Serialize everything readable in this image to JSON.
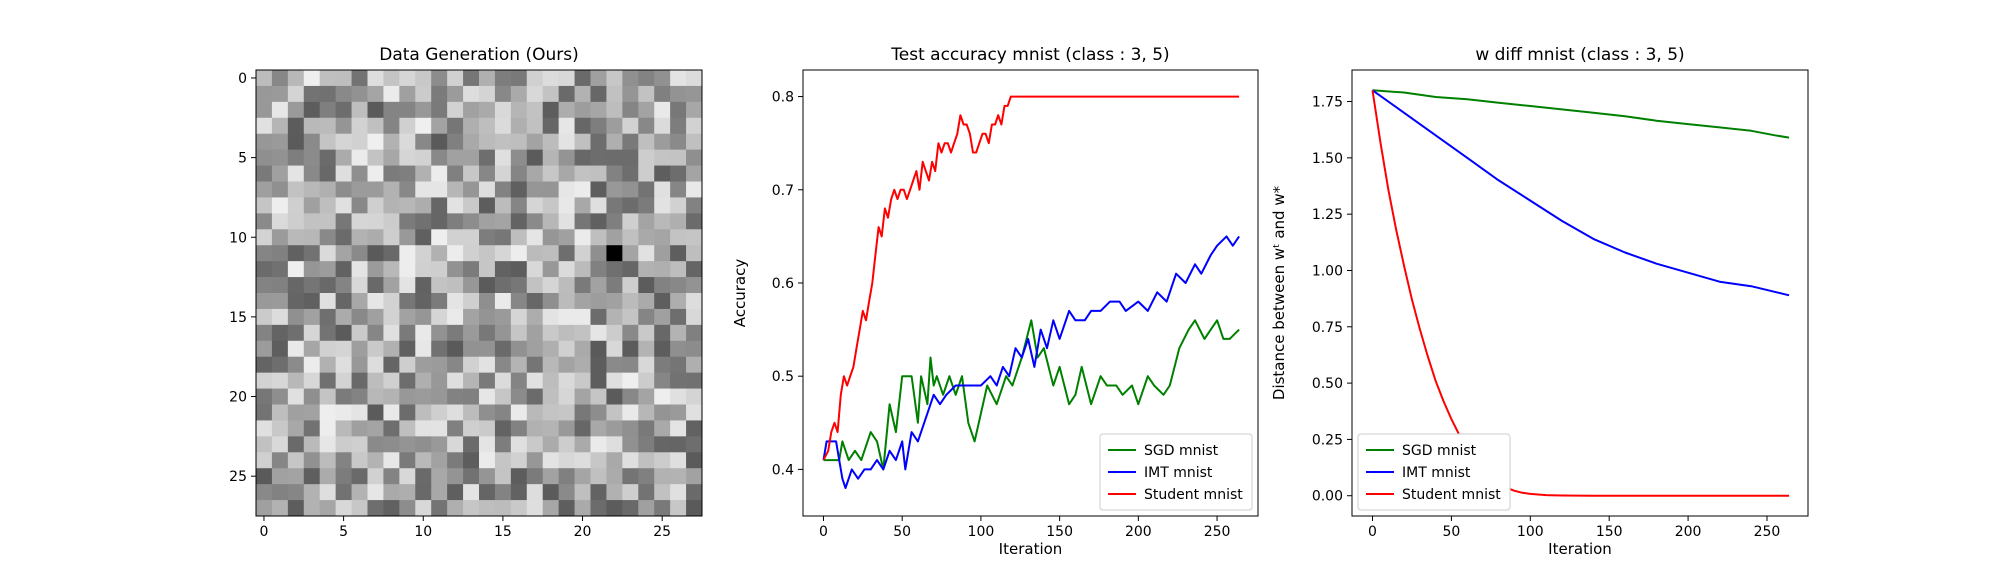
{
  "chart_data": [
    {
      "type": "heatmap",
      "title": "Data Generation (Ours)",
      "colormap": "gray",
      "rows": 28,
      "cols": 28,
      "xticks": [
        0,
        5,
        10,
        15,
        20,
        25
      ],
      "yticks": [
        0,
        5,
        10,
        15,
        20,
        25
      ],
      "darkest_cell": [
        11,
        22
      ]
    },
    {
      "type": "line",
      "title": "Test accuracy mnist (class : 3, 5)",
      "xlabel": "Iteration",
      "ylabel": "Accuracy",
      "xlim": [
        -13,
        276
      ],
      "ylim": [
        0.35,
        0.8285
      ],
      "xticks": [
        0,
        50,
        100,
        150,
        200,
        250
      ],
      "yticks": [
        0.4,
        0.5,
        0.6,
        0.7,
        0.8
      ],
      "ytick_labels": [
        "0.4",
        "0.5",
        "0.6",
        "0.7",
        "0.8"
      ],
      "legend": "lower-right",
      "grid": false,
      "series": [
        {
          "name": "SGD mnist",
          "color": "#008000",
          "x": [
            0,
            10,
            12,
            16,
            20,
            24,
            30,
            34,
            38,
            42,
            46,
            50,
            56,
            60,
            62,
            66,
            68,
            70,
            72,
            76,
            80,
            84,
            88,
            92,
            96,
            100,
            104,
            110,
            116,
            120,
            126,
            132,
            136,
            140,
            146,
            150,
            156,
            160,
            164,
            170,
            176,
            180,
            186,
            190,
            196,
            200,
            206,
            210,
            216,
            220,
            226,
            232,
            236,
            242,
            246,
            250,
            254,
            258,
            264
          ],
          "y": [
            0.41,
            0.41,
            0.43,
            0.41,
            0.42,
            0.41,
            0.44,
            0.43,
            0.4,
            0.47,
            0.44,
            0.5,
            0.5,
            0.45,
            0.5,
            0.47,
            0.52,
            0.49,
            0.5,
            0.48,
            0.5,
            0.48,
            0.5,
            0.45,
            0.43,
            0.46,
            0.49,
            0.47,
            0.5,
            0.49,
            0.52,
            0.56,
            0.52,
            0.53,
            0.49,
            0.51,
            0.47,
            0.48,
            0.51,
            0.47,
            0.5,
            0.49,
            0.49,
            0.48,
            0.49,
            0.47,
            0.5,
            0.49,
            0.48,
            0.49,
            0.53,
            0.55,
            0.56,
            0.54,
            0.55,
            0.56,
            0.54,
            0.54,
            0.55
          ]
        },
        {
          "name": "IMT mnist",
          "color": "#0000ff",
          "x": [
            0,
            2,
            8,
            10,
            12,
            14,
            18,
            22,
            26,
            30,
            34,
            38,
            42,
            46,
            50,
            52,
            56,
            60,
            64,
            70,
            74,
            78,
            84,
            90,
            96,
            100,
            106,
            110,
            114,
            118,
            122,
            126,
            130,
            134,
            138,
            142,
            146,
            150,
            156,
            160,
            166,
            170,
            176,
            182,
            188,
            192,
            200,
            206,
            212,
            218,
            224,
            230,
            236,
            240,
            246,
            250,
            256,
            260,
            264
          ],
          "y": [
            0.41,
            0.43,
            0.43,
            0.41,
            0.39,
            0.38,
            0.4,
            0.39,
            0.4,
            0.4,
            0.41,
            0.4,
            0.42,
            0.41,
            0.43,
            0.4,
            0.44,
            0.43,
            0.45,
            0.48,
            0.47,
            0.48,
            0.49,
            0.49,
            0.49,
            0.49,
            0.5,
            0.49,
            0.51,
            0.5,
            0.53,
            0.52,
            0.54,
            0.51,
            0.55,
            0.53,
            0.56,
            0.54,
            0.57,
            0.56,
            0.56,
            0.57,
            0.57,
            0.58,
            0.58,
            0.57,
            0.58,
            0.57,
            0.59,
            0.58,
            0.61,
            0.6,
            0.62,
            0.61,
            0.63,
            0.64,
            0.65,
            0.64,
            0.65
          ]
        },
        {
          "name": "Student mnist",
          "color": "#ff0000",
          "x": [
            0,
            3,
            5,
            7,
            9,
            11,
            13,
            15,
            17,
            19,
            21,
            23,
            25,
            27,
            29,
            31,
            33,
            35,
            37,
            39,
            41,
            43,
            45,
            47,
            49,
            51,
            53,
            55,
            57,
            59,
            61,
            63,
            65,
            67,
            69,
            71,
            73,
            75,
            77,
            79,
            81,
            83,
            85,
            87,
            89,
            91,
            93,
            95,
            97,
            99,
            101,
            103,
            105,
            107,
            109,
            111,
            113,
            115,
            117,
            119,
            121,
            123,
            125,
            130,
            150,
            200,
            250,
            264
          ],
          "y": [
            0.41,
            0.42,
            0.44,
            0.45,
            0.44,
            0.48,
            0.5,
            0.49,
            0.5,
            0.51,
            0.53,
            0.55,
            0.57,
            0.56,
            0.58,
            0.6,
            0.63,
            0.66,
            0.65,
            0.68,
            0.67,
            0.69,
            0.7,
            0.69,
            0.7,
            0.7,
            0.69,
            0.7,
            0.71,
            0.72,
            0.7,
            0.73,
            0.72,
            0.71,
            0.73,
            0.72,
            0.75,
            0.74,
            0.75,
            0.75,
            0.74,
            0.75,
            0.76,
            0.78,
            0.77,
            0.77,
            0.76,
            0.74,
            0.74,
            0.75,
            0.76,
            0.76,
            0.75,
            0.77,
            0.77,
            0.78,
            0.77,
            0.79,
            0.79,
            0.8,
            0.8,
            0.8,
            0.8,
            0.8,
            0.8,
            0.8,
            0.8,
            0.8
          ]
        }
      ]
    },
    {
      "type": "line",
      "title": "w diff mnist (class : 3, 5)",
      "xlabel": "Iteration",
      "ylabel": "Distance between wᵗ and w*",
      "xlim": [
        -13,
        276
      ],
      "ylim": [
        -0.09,
        1.89
      ],
      "xticks": [
        0,
        50,
        100,
        150,
        200,
        250
      ],
      "yticks": [
        0.0,
        0.25,
        0.5,
        0.75,
        1.0,
        1.25,
        1.5,
        1.75
      ],
      "ytick_labels": [
        "0.00",
        "0.25",
        "0.50",
        "0.75",
        "1.00",
        "1.25",
        "1.50",
        "1.75"
      ],
      "legend": "lower-left",
      "grid": false,
      "series": [
        {
          "name": "SGD mnist",
          "color": "#008000",
          "x": [
            0,
            20,
            40,
            60,
            80,
            100,
            120,
            140,
            160,
            180,
            200,
            220,
            240,
            255,
            264
          ],
          "y": [
            1.8,
            1.79,
            1.77,
            1.76,
            1.745,
            1.73,
            1.715,
            1.7,
            1.685,
            1.665,
            1.65,
            1.635,
            1.62,
            1.6,
            1.59
          ]
        },
        {
          "name": "IMT mnist",
          "color": "#0000ff",
          "x": [
            0,
            20,
            40,
            60,
            80,
            100,
            120,
            140,
            160,
            180,
            200,
            220,
            240,
            264
          ],
          "y": [
            1.8,
            1.7,
            1.6,
            1.5,
            1.4,
            1.31,
            1.22,
            1.14,
            1.08,
            1.03,
            0.99,
            0.95,
            0.93,
            0.89
          ]
        },
        {
          "name": "Student mnist",
          "color": "#ff0000",
          "x": [
            0,
            5,
            10,
            15,
            20,
            25,
            30,
            35,
            40,
            45,
            50,
            55,
            60,
            65,
            70,
            75,
            80,
            85,
            90,
            95,
            100,
            110,
            120,
            140,
            180,
            264
          ],
          "y": [
            1.8,
            1.57,
            1.36,
            1.18,
            1.02,
            0.87,
            0.74,
            0.62,
            0.51,
            0.42,
            0.34,
            0.27,
            0.21,
            0.16,
            0.12,
            0.08,
            0.055,
            0.035,
            0.022,
            0.013,
            0.008,
            0.003,
            0.001,
            0.0,
            0.0,
            0.0
          ]
        }
      ]
    }
  ]
}
